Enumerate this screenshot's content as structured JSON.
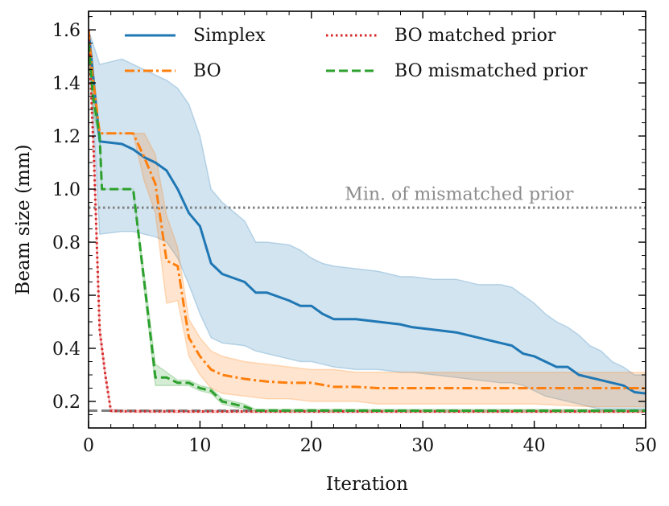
{
  "chart_data": {
    "type": "line",
    "xlabel": "Iteration",
    "ylabel": "Beam size (mm)",
    "xlim": [
      0,
      50
    ],
    "ylim": [
      0.1,
      1.67
    ],
    "x_ticks": [
      0,
      10,
      20,
      30,
      40,
      50
    ],
    "y_ticks": [
      0.2,
      0.4,
      0.6,
      0.8,
      1.0,
      1.2,
      1.4,
      1.6
    ],
    "x_tick_labels": [
      "0",
      "10",
      "20",
      "30",
      "40",
      "50"
    ],
    "y_tick_labels": [
      "0.2",
      "0.4",
      "0.6",
      "0.8",
      "1.0",
      "1.2",
      "1.4",
      "1.6"
    ],
    "grid": false,
    "legend_position": "top",
    "series": [
      {
        "name": "Simplex",
        "color": "#1f77b4",
        "style": "solid",
        "x": [
          0,
          1,
          3,
          4,
          5,
          6,
          7,
          8,
          9,
          10,
          11,
          12,
          14,
          15,
          16,
          18,
          19,
          20,
          21,
          22,
          24,
          26,
          28,
          29,
          31,
          33,
          35,
          37,
          38,
          39,
          40,
          41,
          42,
          43,
          44,
          45,
          46,
          47,
          48,
          49,
          50
        ],
        "y": [
          1.6,
          1.18,
          1.17,
          1.15,
          1.12,
          1.1,
          1.07,
          1.0,
          0.91,
          0.86,
          0.72,
          0.68,
          0.65,
          0.61,
          0.61,
          0.58,
          0.56,
          0.56,
          0.53,
          0.51,
          0.51,
          0.5,
          0.49,
          0.48,
          0.47,
          0.46,
          0.44,
          0.42,
          0.41,
          0.38,
          0.37,
          0.35,
          0.33,
          0.33,
          0.3,
          0.29,
          0.28,
          0.27,
          0.26,
          0.235,
          0.23
        ],
        "upper": [
          1.6,
          1.47,
          1.49,
          1.47,
          1.45,
          1.43,
          1.41,
          1.38,
          1.32,
          1.2,
          1.0,
          0.95,
          0.88,
          0.8,
          0.8,
          0.79,
          0.77,
          0.74,
          0.72,
          0.71,
          0.7,
          0.69,
          0.67,
          0.67,
          0.66,
          0.66,
          0.64,
          0.64,
          0.63,
          0.6,
          0.57,
          0.53,
          0.5,
          0.48,
          0.45,
          0.41,
          0.39,
          0.35,
          0.33,
          0.3,
          0.3
        ],
        "lower": [
          1.6,
          0.83,
          0.84,
          0.84,
          0.83,
          0.82,
          0.8,
          0.74,
          0.64,
          0.53,
          0.44,
          0.42,
          0.41,
          0.39,
          0.38,
          0.36,
          0.35,
          0.35,
          0.34,
          0.33,
          0.32,
          0.32,
          0.31,
          0.31,
          0.3,
          0.29,
          0.28,
          0.27,
          0.27,
          0.26,
          0.24,
          0.22,
          0.21,
          0.2,
          0.19,
          0.18,
          0.17,
          0.17,
          0.17,
          0.17,
          0.17
        ]
      },
      {
        "name": "BO",
        "color": "#ff7f0e",
        "style": "dashdot",
        "x": [
          0,
          0.3,
          1,
          2,
          3,
          4,
          5,
          6,
          7,
          8,
          9,
          10,
          11,
          12,
          14,
          16,
          18,
          20,
          22,
          24,
          26,
          28,
          30,
          35,
          40,
          45,
          50
        ],
        "y": [
          1.6,
          1.45,
          1.21,
          1.21,
          1.21,
          1.21,
          1.12,
          1.02,
          0.73,
          0.71,
          0.44,
          0.37,
          0.32,
          0.3,
          0.285,
          0.275,
          0.27,
          0.27,
          0.255,
          0.255,
          0.25,
          0.25,
          0.25,
          0.25,
          0.25,
          0.25,
          0.25
        ],
        "upper": [
          1.6,
          1.5,
          1.21,
          1.21,
          1.21,
          1.21,
          1.21,
          1.13,
          0.9,
          0.78,
          0.51,
          0.44,
          0.39,
          0.37,
          0.35,
          0.34,
          0.33,
          0.32,
          0.32,
          0.31,
          0.31,
          0.31,
          0.31,
          0.31,
          0.31,
          0.31,
          0.31
        ],
        "lower": [
          1.6,
          1.4,
          1.21,
          1.21,
          1.21,
          1.21,
          1.03,
          0.91,
          0.57,
          0.58,
          0.37,
          0.3,
          0.25,
          0.23,
          0.22,
          0.21,
          0.21,
          0.2,
          0.2,
          0.2,
          0.19,
          0.19,
          0.19,
          0.19,
          0.19,
          0.18,
          0.18
        ]
      },
      {
        "name": "BO matched prior",
        "color": "#d62728",
        "style": "dotted",
        "x": [
          0,
          0.5,
          1,
          1.5,
          2,
          3,
          10,
          20,
          30,
          40,
          50
        ],
        "y": [
          1.6,
          1.1,
          0.47,
          0.3,
          0.165,
          0.163,
          0.162,
          0.162,
          0.162,
          0.162,
          0.162
        ],
        "upper": [
          1.6,
          1.12,
          0.49,
          0.31,
          0.17,
          0.167,
          0.166,
          0.166,
          0.166,
          0.166,
          0.166
        ],
        "lower": [
          1.6,
          1.08,
          0.45,
          0.29,
          0.16,
          0.159,
          0.158,
          0.158,
          0.158,
          0.158,
          0.158
        ]
      },
      {
        "name": "BO mismatched prior",
        "color": "#2ca02c",
        "style": "dashed",
        "x": [
          0,
          0.4,
          1,
          1.2,
          2,
          3,
          4,
          5,
          6,
          7,
          8,
          9,
          10,
          11,
          12,
          13,
          14,
          15,
          20,
          30,
          40,
          50
        ],
        "y": [
          1.55,
          1.35,
          1.2,
          1.0,
          1.0,
          1.0,
          1.0,
          0.65,
          0.29,
          0.29,
          0.27,
          0.27,
          0.25,
          0.24,
          0.2,
          0.19,
          0.18,
          0.166,
          0.166,
          0.165,
          0.165,
          0.165
        ],
        "upper": [
          1.58,
          1.4,
          1.22,
          1.0,
          1.0,
          1.0,
          1.0,
          0.68,
          0.34,
          0.31,
          0.28,
          0.28,
          0.26,
          0.25,
          0.21,
          0.2,
          0.19,
          0.17,
          0.17,
          0.17,
          0.17,
          0.17
        ],
        "lower": [
          1.52,
          1.3,
          1.18,
          1.0,
          1.0,
          1.0,
          1.0,
          0.62,
          0.26,
          0.26,
          0.26,
          0.26,
          0.24,
          0.23,
          0.19,
          0.18,
          0.17,
          0.162,
          0.162,
          0.162,
          0.162,
          0.162
        ]
      }
    ],
    "reference_lines": [
      {
        "y": 0.93,
        "color": "#808080",
        "style": "dotted"
      },
      {
        "y": 0.165,
        "color": "#808080",
        "style": "dashed"
      }
    ],
    "annotations": [
      {
        "text": "Min. of mismatched prior",
        "x": 23,
        "y": 0.96
      }
    ]
  }
}
